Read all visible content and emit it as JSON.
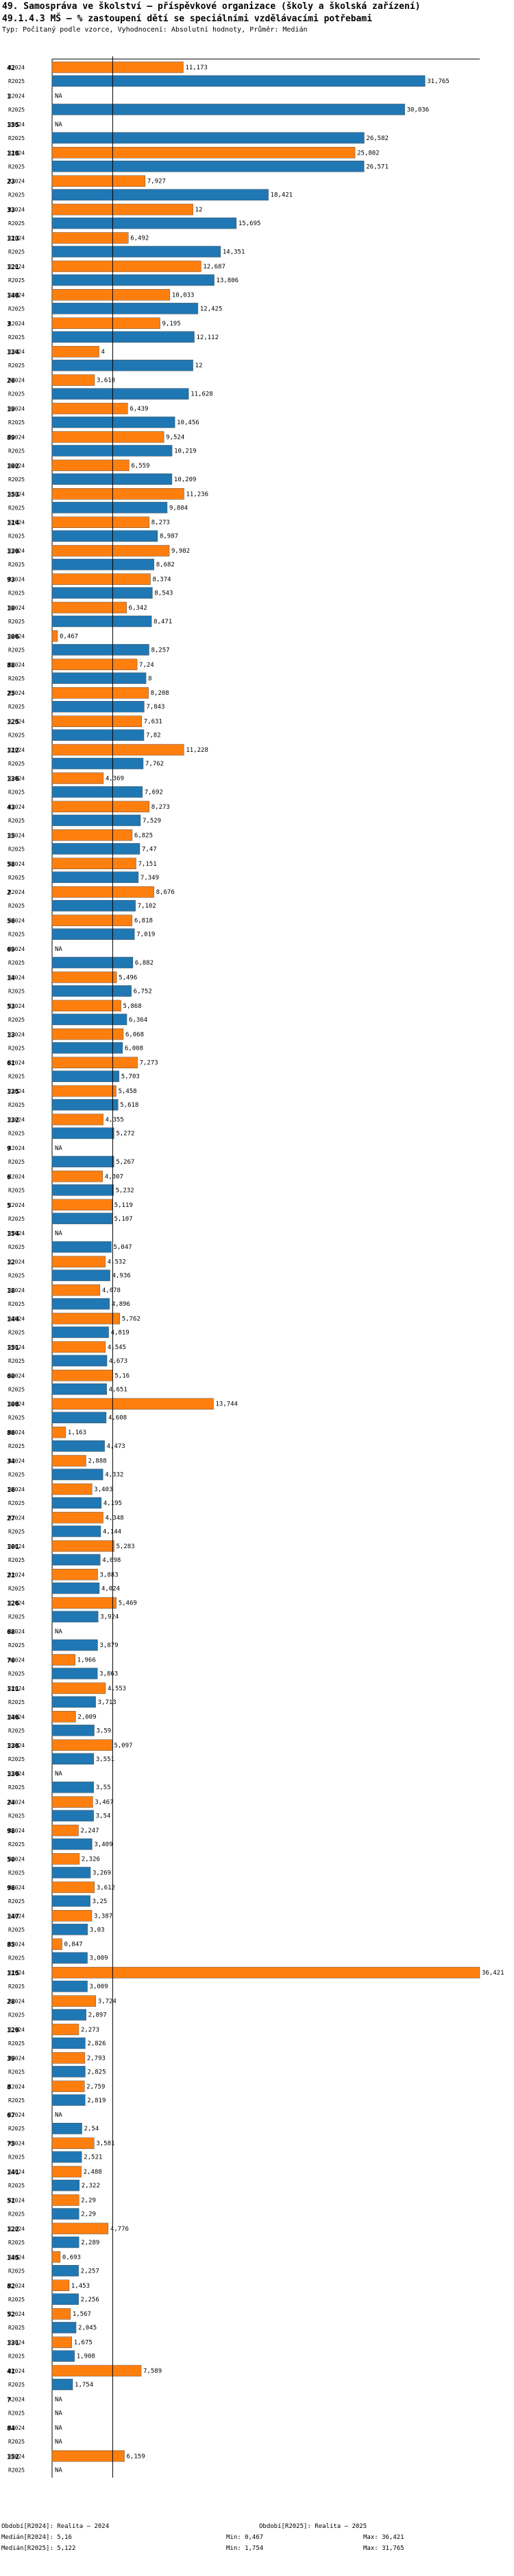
{
  "title_line1": "49. Samospráva ve školství – příspěvkové organizace (školy a školská zařízení)",
  "title_line2": "49.1.4.3 MŠ – % zastoupení dětí se speciálními vzdělávacími potřebami",
  "subtitle": "Typ: Počítaný podle vzorce, Vyhodnocení: Absolutní hodnoty, Průměr: Medián",
  "colors": {
    "r2024": "#ff7f0e",
    "r2025": "#1f77b4",
    "median": "#000000"
  },
  "chart_data": {
    "type": "bar",
    "orientation": "horizontal",
    "series_names": [
      "R2024",
      "R2025"
    ],
    "xlim": [
      0,
      36.421
    ],
    "medians": {
      "R2024": 5.16,
      "R2025": 5.122
    },
    "groups": [
      {
        "id": "42",
        "values": [
          11.173,
          31.765
        ],
        "labels": [
          "11,173",
          "31,765"
        ]
      },
      {
        "id": "1",
        "values": [
          null,
          30.036
        ],
        "labels": [
          "NA",
          "30,036"
        ]
      },
      {
        "id": "155",
        "values": [
          null,
          26.582
        ],
        "labels": [
          "NA",
          "26,582"
        ]
      },
      {
        "id": "118",
        "values": [
          25.802,
          26.571
        ],
        "labels": [
          "25,802",
          "26,571"
        ]
      },
      {
        "id": "23",
        "values": [
          7.927,
          18.421
        ],
        "labels": [
          "7,927",
          "18,421"
        ]
      },
      {
        "id": "33",
        "values": [
          12,
          15.695
        ],
        "labels": [
          "12",
          "15,695"
        ]
      },
      {
        "id": "113",
        "values": [
          6.492,
          14.351
        ],
        "labels": [
          "6,492",
          "14,351"
        ]
      },
      {
        "id": "121",
        "values": [
          12.687,
          13.806
        ],
        "labels": [
          "12,687",
          "13,806"
        ]
      },
      {
        "id": "148",
        "values": [
          10.033,
          12.425
        ],
        "labels": [
          "10,033",
          "12,425"
        ]
      },
      {
        "id": "3",
        "values": [
          9.195,
          12.112
        ],
        "labels": [
          "9,195",
          "12,112"
        ]
      },
      {
        "id": "134",
        "values": [
          4,
          12
        ],
        "labels": [
          "4",
          "12"
        ]
      },
      {
        "id": "26",
        "values": [
          3.618,
          11.628
        ],
        "labels": [
          "3,618",
          "11,628"
        ]
      },
      {
        "id": "19",
        "values": [
          6.439,
          10.456
        ],
        "labels": [
          "6,439",
          "10,456"
        ]
      },
      {
        "id": "89",
        "values": [
          9.524,
          10.219
        ],
        "labels": [
          "9,524",
          "10,219"
        ]
      },
      {
        "id": "102",
        "values": [
          6.559,
          10.209
        ],
        "labels": [
          "6,559",
          "10,209"
        ]
      },
      {
        "id": "153",
        "values": [
          11.236,
          9.804
        ],
        "labels": [
          "11,236",
          "9,804"
        ]
      },
      {
        "id": "114",
        "values": [
          8.273,
          8.987
        ],
        "labels": [
          "8,273",
          "8,987"
        ]
      },
      {
        "id": "139",
        "values": [
          9.982,
          8.682
        ],
        "labels": [
          "9,982",
          "8,682"
        ]
      },
      {
        "id": "93",
        "values": [
          8.374,
          8.543
        ],
        "labels": [
          "8,374",
          "8,543"
        ]
      },
      {
        "id": "10",
        "values": [
          6.342,
          8.471
        ],
        "labels": [
          "6,342",
          "8,471"
        ]
      },
      {
        "id": "106",
        "values": [
          0.467,
          8.257
        ],
        "labels": [
          "0,467",
          "8,257"
        ]
      },
      {
        "id": "88",
        "values": [
          7.24,
          8
        ],
        "labels": [
          "7,24",
          "8"
        ]
      },
      {
        "id": "25",
        "values": [
          8.208,
          7.843
        ],
        "labels": [
          "8,208",
          "7,843"
        ]
      },
      {
        "id": "125",
        "values": [
          7.631,
          7.82
        ],
        "labels": [
          "7,631",
          "7,82"
        ]
      },
      {
        "id": "112",
        "values": [
          11.228,
          7.762
        ],
        "labels": [
          "11,228",
          "7,762"
        ]
      },
      {
        "id": "136",
        "values": [
          4.369,
          7.692
        ],
        "labels": [
          "4,369",
          "7,692"
        ]
      },
      {
        "id": "43",
        "values": [
          8.273,
          7.529
        ],
        "labels": [
          "8,273",
          "7,529"
        ]
      },
      {
        "id": "15",
        "values": [
          6.825,
          7.47
        ],
        "labels": [
          "6,825",
          "7,47"
        ]
      },
      {
        "id": "58",
        "values": [
          7.151,
          7.349
        ],
        "labels": [
          "7,151",
          "7,349"
        ]
      },
      {
        "id": "2",
        "values": [
          8.676,
          7.102
        ],
        "labels": [
          "8,676",
          "7,102"
        ]
      },
      {
        "id": "56",
        "values": [
          6.818,
          7.019
        ],
        "labels": [
          "6,818",
          "7,019"
        ]
      },
      {
        "id": "69",
        "values": [
          null,
          6.882
        ],
        "labels": [
          "NA",
          "6,882"
        ]
      },
      {
        "id": "14",
        "values": [
          5.496,
          6.752
        ],
        "labels": [
          "5,496",
          "6,752"
        ]
      },
      {
        "id": "53",
        "values": [
          5.868,
          6.364
        ],
        "labels": [
          "5,868",
          "6,364"
        ]
      },
      {
        "id": "13",
        "values": [
          6.068,
          6.008
        ],
        "labels": [
          "6,068",
          "6,008"
        ]
      },
      {
        "id": "61",
        "values": [
          7.273,
          5.703
        ],
        "labels": [
          "7,273",
          "5,703"
        ]
      },
      {
        "id": "135",
        "values": [
          5.458,
          5.618
        ],
        "labels": [
          "5,458",
          "5,618"
        ]
      },
      {
        "id": "132",
        "values": [
          4.355,
          5.272
        ],
        "labels": [
          "4,355",
          "5,272"
        ]
      },
      {
        "id": "9",
        "values": [
          null,
          5.267
        ],
        "labels": [
          "NA",
          "5,267"
        ]
      },
      {
        "id": "6",
        "values": [
          4.307,
          5.232
        ],
        "labels": [
          "4,307",
          "5,232"
        ]
      },
      {
        "id": "5",
        "values": [
          5.119,
          5.107
        ],
        "labels": [
          "5,119",
          "5,107"
        ]
      },
      {
        "id": "154",
        "values": [
          null,
          5.047
        ],
        "labels": [
          "NA",
          "5,047"
        ]
      },
      {
        "id": "12",
        "values": [
          4.532,
          4.936
        ],
        "labels": [
          "4,532",
          "4,936"
        ]
      },
      {
        "id": "18",
        "values": [
          4.078,
          4.896
        ],
        "labels": [
          "4,078",
          "4,896"
        ]
      },
      {
        "id": "144",
        "values": [
          5.762,
          4.819
        ],
        "labels": [
          "5,762",
          "4,819"
        ]
      },
      {
        "id": "151",
        "values": [
          4.545,
          4.673
        ],
        "labels": [
          "4,545",
          "4,673"
        ]
      },
      {
        "id": "60",
        "values": [
          5.16,
          4.651
        ],
        "labels": [
          "5,16",
          "4,651"
        ]
      },
      {
        "id": "108",
        "values": [
          13.744,
          4.608
        ],
        "labels": [
          "13,744",
          "4,608"
        ]
      },
      {
        "id": "86",
        "values": [
          1.163,
          4.473
        ],
        "labels": [
          "1,163",
          "4,473"
        ]
      },
      {
        "id": "34",
        "values": [
          2.888,
          4.332
        ],
        "labels": [
          "2,888",
          "4,332"
        ]
      },
      {
        "id": "16",
        "values": [
          3.403,
          4.195
        ],
        "labels": [
          "3,403",
          "4,195"
        ]
      },
      {
        "id": "27",
        "values": [
          4.348,
          4.144
        ],
        "labels": [
          "4,348",
          "4,144"
        ]
      },
      {
        "id": "101",
        "values": [
          5.283,
          4.098
        ],
        "labels": [
          "5,283",
          "4,098"
        ]
      },
      {
        "id": "21",
        "values": [
          3.883,
          4.024
        ],
        "labels": [
          "3,883",
          "4,024"
        ]
      },
      {
        "id": "126",
        "values": [
          5.469,
          3.924
        ],
        "labels": [
          "5,469",
          "3,924"
        ]
      },
      {
        "id": "68",
        "values": [
          null,
          3.879
        ],
        "labels": [
          "NA",
          "3,879"
        ]
      },
      {
        "id": "76",
        "values": [
          1.966,
          3.863
        ],
        "labels": [
          "1,966",
          "3,863"
        ]
      },
      {
        "id": "111",
        "values": [
          4.553,
          3.713
        ],
        "labels": [
          "4,553",
          "3,713"
        ]
      },
      {
        "id": "146",
        "values": [
          2.009,
          3.59
        ],
        "labels": [
          "2,009",
          "3,59"
        ]
      },
      {
        "id": "138",
        "values": [
          5.097,
          3.551
        ],
        "labels": [
          "5,097",
          "3,551"
        ]
      },
      {
        "id": "130",
        "values": [
          null,
          3.55
        ],
        "labels": [
          "NA",
          "3,55"
        ]
      },
      {
        "id": "24",
        "values": [
          3.467,
          3.54
        ],
        "labels": [
          "3,467",
          "3,54"
        ]
      },
      {
        "id": "98",
        "values": [
          2.247,
          3.409
        ],
        "labels": [
          "2,247",
          "3,409"
        ]
      },
      {
        "id": "50",
        "values": [
          2.326,
          3.269
        ],
        "labels": [
          "2,326",
          "3,269"
        ]
      },
      {
        "id": "96",
        "values": [
          3.612,
          3.25
        ],
        "labels": [
          "3,612",
          "3,25"
        ]
      },
      {
        "id": "147",
        "values": [
          3.387,
          3.03
        ],
        "labels": [
          "3,387",
          "3,03"
        ]
      },
      {
        "id": "85",
        "values": [
          0.847,
          3.009
        ],
        "labels": [
          "0,847",
          "3,009"
        ]
      },
      {
        "id": "115",
        "values": [
          36.421,
          3.009
        ],
        "labels": [
          "36,421",
          "3,009"
        ]
      },
      {
        "id": "28",
        "values": [
          3.724,
          2.897
        ],
        "labels": [
          "3,724",
          "2,897"
        ]
      },
      {
        "id": "129",
        "values": [
          2.273,
          2.826
        ],
        "labels": [
          "2,273",
          "2,826"
        ]
      },
      {
        "id": "39",
        "values": [
          2.793,
          2.825
        ],
        "labels": [
          "2,793",
          "2,825"
        ]
      },
      {
        "id": "8",
        "values": [
          2.759,
          2.819
        ],
        "labels": [
          "2,759",
          "2,819"
        ]
      },
      {
        "id": "67",
        "values": [
          null,
          2.54
        ],
        "labels": [
          "NA",
          "2,54"
        ]
      },
      {
        "id": "75",
        "values": [
          3.581,
          2.521
        ],
        "labels": [
          "3,581",
          "2,521"
        ]
      },
      {
        "id": "141",
        "values": [
          2.488,
          2.322
        ],
        "labels": [
          "2,488",
          "2,322"
        ]
      },
      {
        "id": "51",
        "values": [
          2.29,
          2.29
        ],
        "labels": [
          "2,29",
          "2,29"
        ]
      },
      {
        "id": "122",
        "values": [
          4.776,
          2.289
        ],
        "labels": [
          "4,776",
          "2,289"
        ]
      },
      {
        "id": "145",
        "values": [
          0.693,
          2.257
        ],
        "labels": [
          "0,693",
          "2,257"
        ]
      },
      {
        "id": "82",
        "values": [
          1.453,
          2.256
        ],
        "labels": [
          "1,453",
          "2,256"
        ]
      },
      {
        "id": "52",
        "values": [
          1.567,
          2.045
        ],
        "labels": [
          "1,567",
          "2,045"
        ]
      },
      {
        "id": "131",
        "values": [
          1.675,
          1.908
        ],
        "labels": [
          "1,675",
          "1,908"
        ]
      },
      {
        "id": "41",
        "values": [
          7.589,
          1.754
        ],
        "labels": [
          "7,589",
          "1,754"
        ]
      },
      {
        "id": "7",
        "values": [
          null,
          null
        ],
        "labels": [
          "NA",
          "NA"
        ]
      },
      {
        "id": "84",
        "values": [
          null,
          null
        ],
        "labels": [
          "NA",
          "NA"
        ]
      },
      {
        "id": "152",
        "values": [
          6.159,
          null
        ],
        "labels": [
          "6,159",
          "NA"
        ]
      }
    ]
  },
  "footer": {
    "col1_row1": "Období[R2024]: Realita – 2024",
    "col1_row2": "Medián[R2024]: 5,16",
    "col1_row3": "Medián[R2025]: 5,122",
    "col2_row1": "Období[R2025]: Realita – 2025",
    "col2_row2": "Min: 0,467",
    "col2_row3": "Min: 1,754",
    "col3_row2": "Max: 36,421",
    "col3_row3": "Max: 31,765"
  }
}
